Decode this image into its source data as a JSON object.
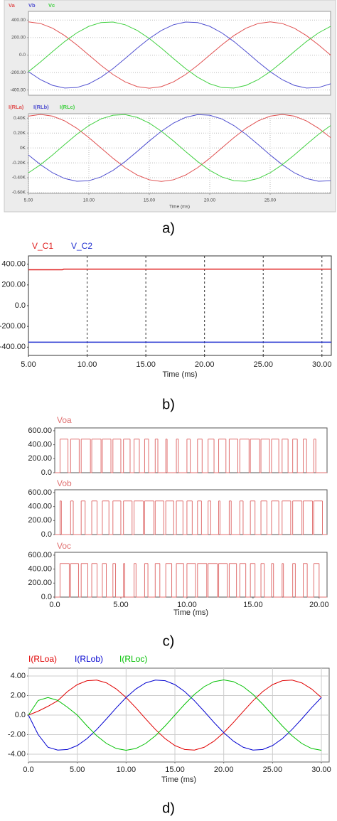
{
  "panel_labels": [
    "a)",
    "b)",
    "c)",
    "d)"
  ],
  "chart_data": [
    {
      "type": "line",
      "grid": true,
      "xlim": [
        5,
        30
      ],
      "ylim": [
        -460,
        500
      ],
      "yticks": [
        {
          "value": 400,
          "label": "400.00"
        },
        {
          "value": 200,
          "label": "200.00"
        },
        {
          "value": 0,
          "label": "0.0"
        },
        {
          "value": -200,
          "label": "-200.00"
        },
        {
          "value": -400,
          "label": "-400.00"
        }
      ],
      "x": [
        5,
        6,
        7,
        8,
        9,
        10,
        11,
        12,
        13,
        14,
        15,
        16,
        17,
        18,
        19,
        20,
        21,
        22,
        23,
        24,
        25,
        26,
        27,
        28,
        29,
        30
      ],
      "series": [
        {
          "name": "Va",
          "color": "#e05050",
          "values": [
            380,
            361,
            307,
            223,
            117,
            0,
            -117,
            -223,
            -307,
            -361,
            -380,
            -361,
            -307,
            -223,
            -117,
            0,
            117,
            223,
            307,
            361,
            380,
            361,
            307,
            223,
            117,
            0
          ]
        },
        {
          "name": "Vb",
          "color": "#5050d0",
          "values": [
            -190,
            -282,
            -347,
            -378,
            -372,
            -329,
            -254,
            -155,
            -40,
            79,
            190,
            282,
            347,
            378,
            372,
            329,
            254,
            155,
            40,
            -79,
            -190,
            -282,
            -347,
            -378,
            -372,
            -329
          ]
        },
        {
          "name": "Vc",
          "color": "#40d040",
          "values": [
            -190,
            -79,
            40,
            155,
            254,
            329,
            372,
            378,
            347,
            282,
            190,
            79,
            -40,
            -155,
            -254,
            -329,
            -372,
            -378,
            -347,
            -282,
            -190,
            -79,
            40,
            155,
            254,
            329
          ]
        }
      ]
    },
    {
      "type": "line",
      "grid": true,
      "xlim": [
        5,
        30
      ],
      "ylim": [
        -610,
        460
      ],
      "xlabel": "Time (ms)",
      "xticks": [
        {
          "value": 5,
          "label": "5.00"
        },
        {
          "value": 10,
          "label": "10.00"
        },
        {
          "value": 15,
          "label": "15.00"
        },
        {
          "value": 20,
          "label": "20.00"
        },
        {
          "value": 25,
          "label": "25.00"
        }
      ],
      "yticks": [
        {
          "value": 400,
          "label": "0.40K"
        },
        {
          "value": 200,
          "label": "0.20K"
        },
        {
          "value": 0,
          "label": "0K"
        },
        {
          "value": -200,
          "label": "-0.20K"
        },
        {
          "value": -400,
          "label": "-0.40K"
        },
        {
          "value": -600,
          "label": "-0.60K"
        }
      ],
      "x": [
        5,
        6,
        7,
        8,
        9,
        10,
        11,
        12,
        13,
        14,
        15,
        16,
        17,
        18,
        19,
        20,
        21,
        22,
        23,
        24,
        25,
        26,
        27,
        28,
        29,
        30
      ],
      "series": [
        {
          "name": "I(RLa)",
          "color": "#e05050",
          "values": [
            428,
            450,
            428,
            364,
            265,
            139,
            0,
            -139,
            -265,
            -364,
            -428,
            -450,
            -428,
            -364,
            -265,
            -139,
            0,
            139,
            265,
            364,
            428,
            450,
            428,
            364,
            265,
            139
          ]
        },
        {
          "name": "I(RLb)",
          "color": "#5050d0",
          "values": [
            -94,
            -225,
            -334,
            -411,
            -448,
            -440,
            -390,
            -301,
            -183,
            -47,
            94,
            225,
            334,
            411,
            448,
            440,
            390,
            301,
            183,
            47,
            -94,
            -225,
            -334,
            -411,
            -448,
            -440
          ]
        },
        {
          "name": "I(RLc)",
          "color": "#40d040",
          "values": [
            -334,
            -225,
            -94,
            47,
            183,
            301,
            390,
            440,
            448,
            411,
            334,
            225,
            94,
            -47,
            -183,
            -301,
            -390,
            -440,
            -448,
            -411,
            -334,
            -225,
            -94,
            47,
            183,
            301
          ]
        }
      ]
    },
    {
      "type": "line",
      "grid": "x",
      "xlim": [
        5,
        30.8
      ],
      "ylim": [
        -480,
        480
      ],
      "xlabel": "Time (ms)",
      "xticks": [
        {
          "value": 5,
          "label": "5.00"
        },
        {
          "value": 10,
          "label": "10.00"
        },
        {
          "value": 15,
          "label": "15.00"
        },
        {
          "value": 20,
          "label": "20.00"
        },
        {
          "value": 25,
          "label": "25.00"
        },
        {
          "value": 30,
          "label": "30.00"
        }
      ],
      "yticks": [
        {
          "value": 400,
          "label": "400.00"
        },
        {
          "value": 200,
          "label": "200.00"
        },
        {
          "value": 0,
          "label": "0.0"
        },
        {
          "value": -200,
          "label": "-200.00"
        },
        {
          "value": -400,
          "label": "-400.00"
        }
      ],
      "x": [
        5,
        7.9,
        8,
        30.8
      ],
      "series": [
        {
          "name": "V_C1",
          "color": "#e02020",
          "values": [
            346,
            346,
            352,
            352
          ]
        },
        {
          "name": "V_C2",
          "color": "#2030d0",
          "values": [
            -352,
            -352,
            -352,
            -352
          ]
        }
      ]
    },
    {
      "type": "step",
      "grid": false,
      "xlim": [
        0,
        20.6
      ],
      "ylim": [
        0,
        640
      ],
      "yticks": [
        {
          "value": 600,
          "label": "600.00"
        },
        {
          "value": 400,
          "label": "400.00"
        },
        {
          "value": 200,
          "label": "200.00"
        },
        {
          "value": 0,
          "label": "0.0"
        }
      ],
      "x": [
        0,
        0.4,
        1.0,
        1.2,
        1.85,
        2.0,
        2.7,
        2.8,
        3.5,
        3.6,
        4.25,
        4.4,
        5.0,
        5.2,
        5.7,
        6.0,
        6.4,
        6.8,
        7.1,
        7.6,
        7.8,
        8.4,
        8.5,
        9.2,
        9.35,
        10.0,
        10.25,
        10.8,
        11.15,
        11.6,
        12.05,
        12.4,
        12.95,
        13.2,
        13.85,
        14.0,
        14.7,
        14.8,
        15.5,
        15.6,
        16.25,
        16.4,
        16.95,
        17.2,
        17.65,
        18.0,
        18.35,
        18.8,
        19.05,
        19.6,
        19.75
      ],
      "series": [
        {
          "name": "Voa",
          "color": "#e07070",
          "values": [
            0,
            480,
            0,
            480,
            0,
            480,
            0,
            480,
            0,
            480,
            0,
            480,
            0,
            480,
            0,
            480,
            0,
            480,
            0,
            480,
            0,
            480,
            0,
            480,
            0,
            480,
            0,
            480,
            0,
            480,
            0,
            480,
            0,
            480,
            0,
            480,
            0,
            480,
            0,
            480,
            0,
            480,
            0,
            480,
            0,
            480,
            0,
            480,
            0,
            480,
            0
          ]
        }
      ]
    },
    {
      "type": "step",
      "grid": false,
      "xlim": [
        0,
        20.6
      ],
      "ylim": [
        0,
        640
      ],
      "yticks": [
        {
          "value": 600,
          "label": "600.00"
        },
        {
          "value": 400,
          "label": "400.00"
        },
        {
          "value": 200,
          "label": "200.00"
        },
        {
          "value": 0,
          "label": "0.0"
        }
      ],
      "x": [
        0,
        0.4,
        0.5,
        1.2,
        1.4,
        2.0,
        2.3,
        2.8,
        3.2,
        3.6,
        4.1,
        4.4,
        5.0,
        5.2,
        5.85,
        6.0,
        6.7,
        6.8,
        7.5,
        7.6,
        8.25,
        8.4,
        9.0,
        9.2,
        9.7,
        10.0,
        10.4,
        10.8,
        11.1,
        11.6,
        11.8,
        12.4,
        12.5,
        13.2,
        13.35,
        14.0,
        14.25,
        14.8,
        15.15,
        15.6,
        16.05,
        16.4,
        16.95,
        17.2,
        17.85,
        18.0,
        18.7,
        18.8,
        19.5,
        19.6,
        20.25
      ],
      "series": [
        {
          "name": "Vob",
          "color": "#e07070",
          "values": [
            0,
            480,
            0,
            480,
            0,
            480,
            0,
            480,
            0,
            480,
            0,
            480,
            0,
            480,
            0,
            480,
            0,
            480,
            0,
            480,
            0,
            480,
            0,
            480,
            0,
            480,
            0,
            480,
            0,
            480,
            0,
            480,
            0,
            480,
            0,
            480,
            0,
            480,
            0,
            480,
            0,
            480,
            0,
            480,
            0,
            480,
            0,
            480,
            0,
            480,
            0
          ]
        }
      ]
    },
    {
      "type": "step",
      "grid": false,
      "xlim": [
        0,
        20.6
      ],
      "ylim": [
        0,
        640
      ],
      "xlabel": "Time (ms)",
      "xticks": [
        {
          "value": 0,
          "label": "0.0"
        },
        {
          "value": 5,
          "label": "5.00"
        },
        {
          "value": 10,
          "label": "10.00"
        },
        {
          "value": 15,
          "label": "15.00"
        },
        {
          "value": 20,
          "label": "20.00"
        }
      ],
      "yticks": [
        {
          "value": 600,
          "label": "600.00"
        },
        {
          "value": 400,
          "label": "400.00"
        },
        {
          "value": 200,
          "label": "200.00"
        },
        {
          "value": 0,
          "label": "0.0"
        }
      ],
      "x": [
        0,
        0.4,
        1.1,
        1.2,
        1.8,
        2.0,
        2.5,
        2.8,
        3.2,
        3.6,
        3.9,
        4.4,
        4.6,
        5.2,
        5.3,
        6.0,
        6.15,
        6.8,
        7.05,
        7.6,
        7.95,
        8.4,
        8.85,
        9.2,
        9.75,
        10.0,
        10.65,
        10.8,
        11.5,
        11.6,
        12.3,
        12.4,
        13.05,
        13.2,
        13.75,
        14.0,
        14.45,
        14.8,
        15.15,
        15.6,
        15.85,
        16.4,
        16.55,
        17.2,
        17.3,
        18.0,
        18.2,
        18.8,
        19.1,
        19.6,
        20.0
      ],
      "series": [
        {
          "name": "Voc",
          "color": "#e07070",
          "values": [
            0,
            480,
            0,
            480,
            0,
            480,
            0,
            480,
            0,
            480,
            0,
            480,
            0,
            480,
            0,
            480,
            0,
            480,
            0,
            480,
            0,
            480,
            0,
            480,
            0,
            480,
            0,
            480,
            0,
            480,
            0,
            480,
            0,
            480,
            0,
            480,
            0,
            480,
            0,
            480,
            0,
            480,
            0,
            480,
            0,
            480,
            0,
            480,
            0,
            480,
            0
          ]
        }
      ]
    },
    {
      "type": "line",
      "grid": true,
      "xlim": [
        0,
        30.8
      ],
      "ylim": [
        -4.8,
        4.8
      ],
      "xlabel": "Time (ms)",
      "xticks": [
        {
          "value": 0,
          "label": "0.0"
        },
        {
          "value": 5,
          "label": "5.00"
        },
        {
          "value": 10,
          "label": "10.00"
        },
        {
          "value": 15,
          "label": "15.00"
        },
        {
          "value": 20,
          "label": "20.00"
        },
        {
          "value": 25,
          "label": "25.00"
        },
        {
          "value": 30,
          "label": "30.00"
        }
      ],
      "yticks": [
        {
          "value": 4,
          "label": "4.00"
        },
        {
          "value": 2,
          "label": "2.00"
        },
        {
          "value": 0,
          "label": "0.0"
        },
        {
          "value": -2,
          "label": "-2.00"
        },
        {
          "value": -4,
          "label": "-4.00"
        }
      ],
      "x": [
        0,
        1,
        2,
        3,
        4,
        5,
        6,
        7,
        8,
        9,
        10,
        11,
        12,
        13,
        14,
        15,
        16,
        17,
        18,
        19,
        20,
        21,
        22,
        23,
        24,
        25,
        26,
        27,
        28,
        29,
        30
      ],
      "series": [
        {
          "name": "I(RLoa)",
          "color": "#e00000",
          "values": [
            0,
            0.4,
            0.9,
            1.47,
            2.41,
            3.12,
            3.52,
            3.58,
            3.29,
            2.67,
            1.8,
            0.75,
            -0.38,
            -1.47,
            -2.41,
            -3.12,
            -3.52,
            -3.58,
            -3.29,
            -2.67,
            -1.8,
            -0.75,
            0.38,
            1.47,
            2.41,
            3.12,
            3.52,
            3.58,
            3.29,
            2.67,
            1.8
          ]
        },
        {
          "name": "I(RLob)",
          "color": "#0000d0",
          "values": [
            0,
            -2.0,
            -3.29,
            -3.58,
            -3.52,
            -3.12,
            -2.41,
            -1.47,
            -0.38,
            0.75,
            1.8,
            2.67,
            3.29,
            3.58,
            3.52,
            3.12,
            2.41,
            1.47,
            0.38,
            -0.75,
            -1.8,
            -2.67,
            -3.29,
            -3.58,
            -3.52,
            -3.12,
            -2.41,
            -1.47,
            -0.38,
            0.75,
            1.8
          ]
        },
        {
          "name": "I(RLoc)",
          "color": "#00c000",
          "values": [
            0,
            1.5,
            1.8,
            1.5,
            0.8,
            0,
            -1.11,
            -2.12,
            -2.91,
            -3.42,
            -3.6,
            -3.42,
            -2.91,
            -2.12,
            -1.11,
            0,
            1.11,
            2.12,
            2.91,
            3.42,
            3.6,
            3.42,
            2.91,
            2.12,
            1.11,
            0,
            -1.11,
            -2.12,
            -2.91,
            -3.42,
            -3.6
          ]
        }
      ]
    }
  ]
}
